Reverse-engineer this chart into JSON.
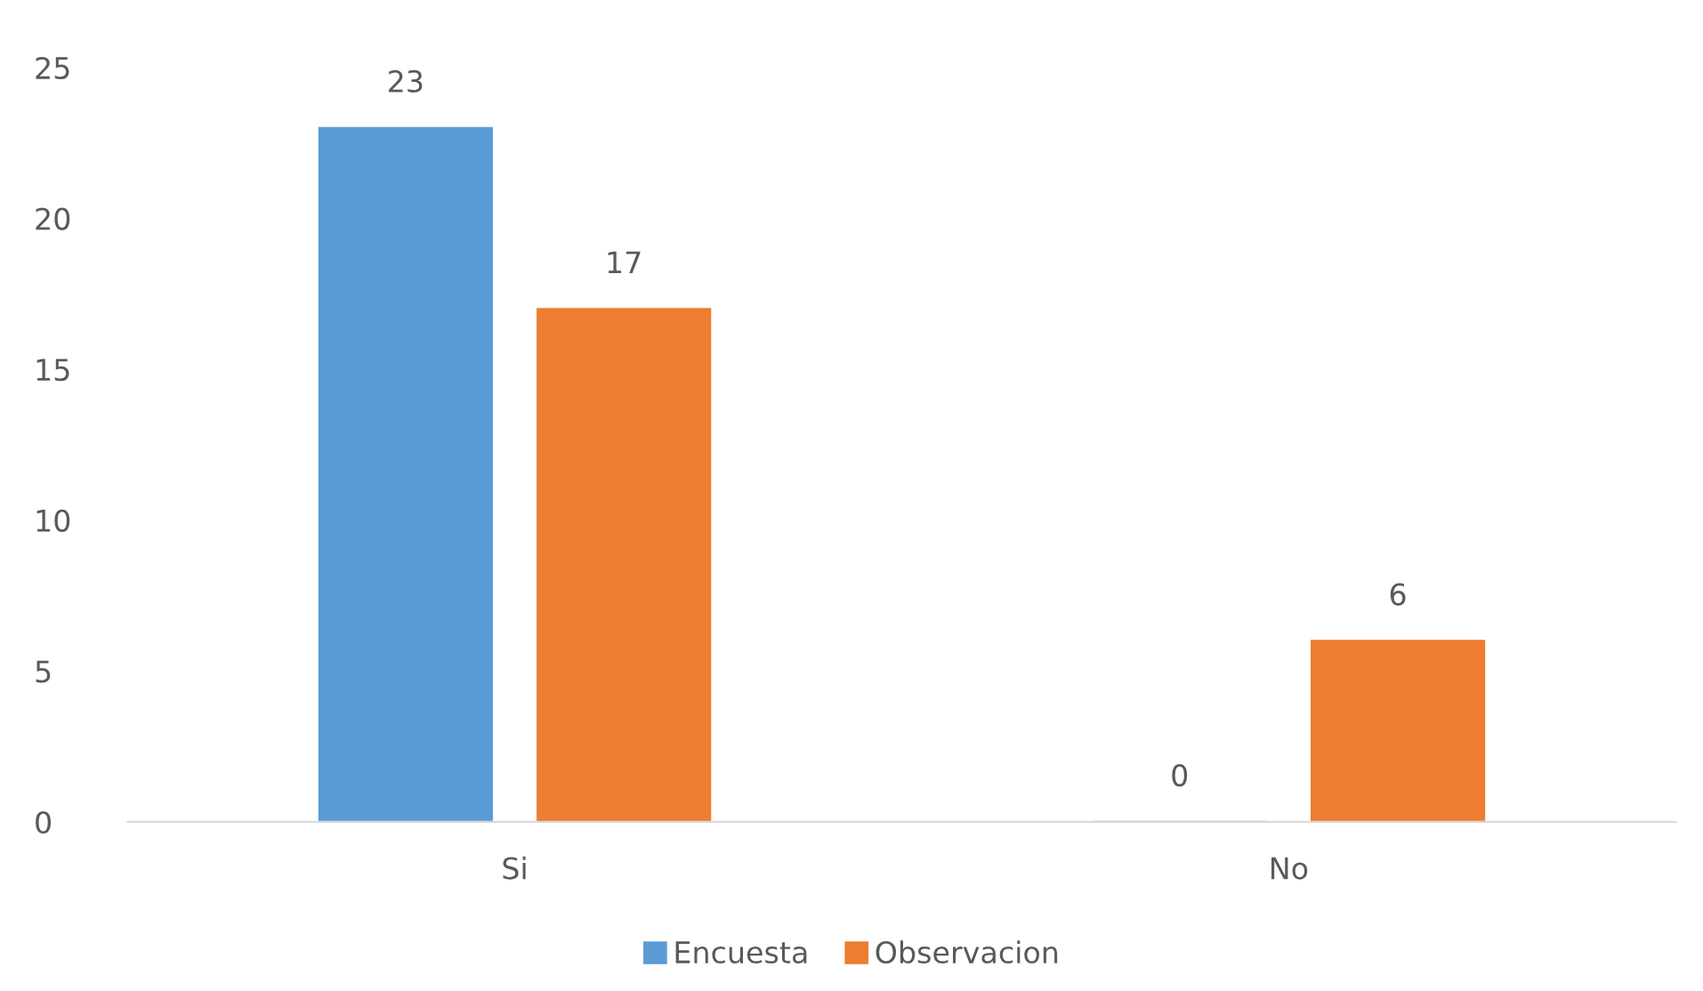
{
  "chart_data": {
    "type": "bar",
    "categories": [
      "Si",
      "No"
    ],
    "series": [
      {
        "name": "Encuesta",
        "color": "#5b9bd5",
        "values": [
          23,
          0
        ]
      },
      {
        "name": "Observacion",
        "color": "#ed7d31",
        "values": [
          17,
          6
        ]
      }
    ],
    "ylim": [
      0,
      25
    ],
    "yticks": [
      0,
      5,
      10,
      15,
      20,
      25
    ],
    "grid": false,
    "legend": "bottom",
    "data_labels": true
  }
}
